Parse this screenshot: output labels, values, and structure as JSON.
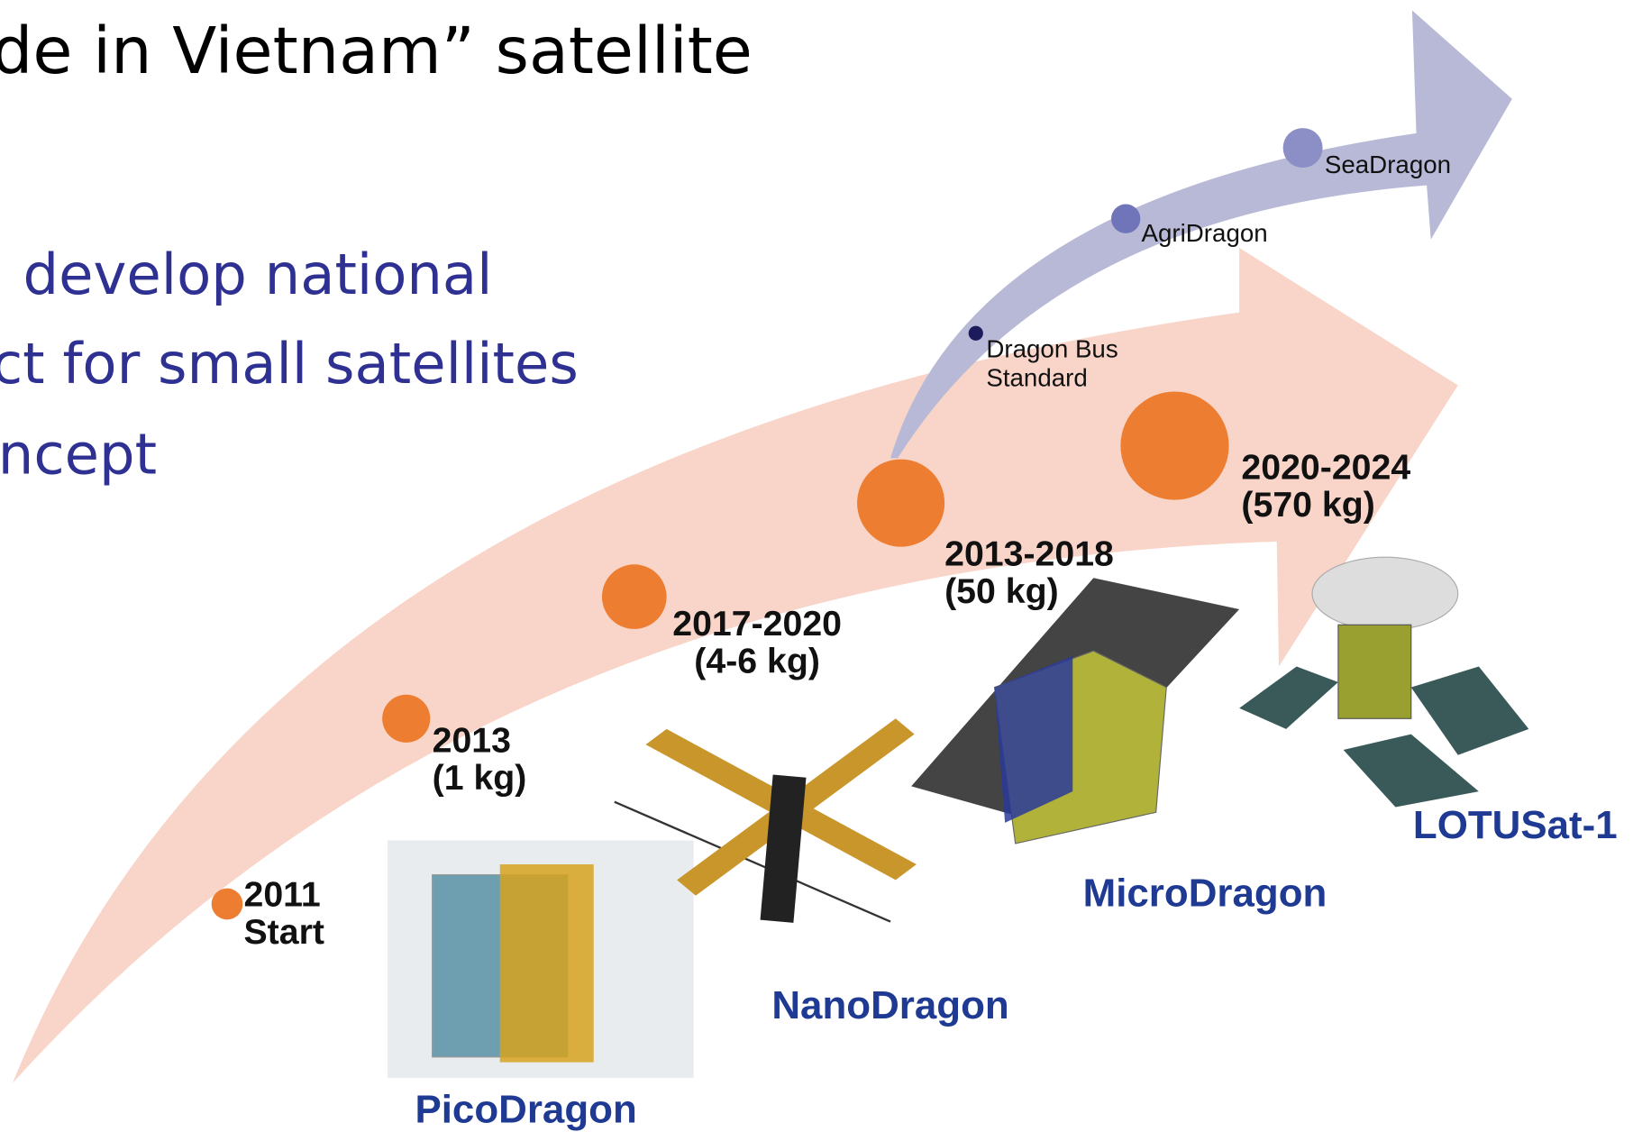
{
  "header": {
    "title": "de in Vietnam” satellite"
  },
  "bullets": [
    "develop national",
    "ct for small satellites",
    "ncept"
  ],
  "milestones": [
    {
      "lines": [
        "2011",
        "Start"
      ]
    },
    {
      "lines": [
        "2013",
        "(1 kg)"
      ]
    },
    {
      "lines": [
        "2017-2020",
        "(4-6 kg)"
      ]
    },
    {
      "lines": [
        "2013-2018",
        "(50 kg)"
      ]
    },
    {
      "lines": [
        "2020-2024",
        "(570 kg)"
      ]
    }
  ],
  "branch": [
    {
      "lines": [
        "Dragon Bus",
        "Standard"
      ]
    },
    {
      "lines": [
        "AgriDragon"
      ]
    },
    {
      "lines": [
        "SeaDragon"
      ]
    }
  ],
  "satellites": [
    "PicoDragon",
    "NanoDragon",
    "MicroDragon",
    "LOTUSat-1"
  ]
}
